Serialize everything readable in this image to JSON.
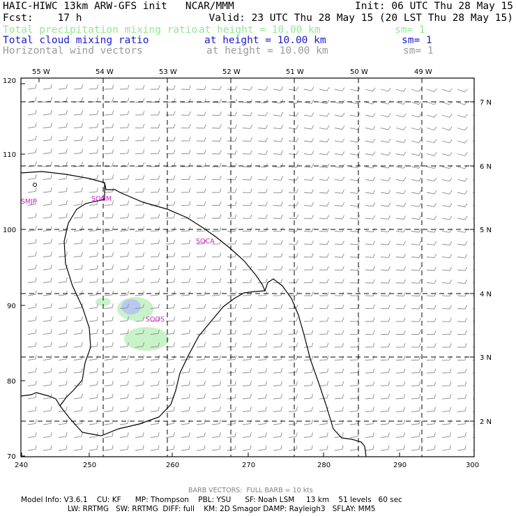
{
  "header": {
    "title": "HAIC-HIWC 13km ARW-GFS init   NCAR/MMM",
    "init": "Init: 06 UTC Thu 28 May 15",
    "fcst": "Fcst:    17 h",
    "valid": "Valid: 23 UTC Thu 28 May 15 (20 LST Thu 28 May 15)",
    "fields": [
      {
        "name": "Total precipitation mixing ratio",
        "level": "at height = 10.00 km",
        "sm": "sm= 1",
        "color": "#90e890"
      },
      {
        "name": "Total cloud mixing ratio",
        "level": "at height = 10.00 km",
        "sm": "sm= 1",
        "color": "#1a1ad0"
      },
      {
        "name": "Horizontal wind vectors",
        "level": "at height = 10.00 km",
        "sm": "sm= 1",
        "color": "#9a9a9a"
      }
    ]
  },
  "map": {
    "lon_labels": [
      "55 W",
      "54 W",
      "53 W",
      "52 W",
      "51 W",
      "50 W",
      "49 W"
    ],
    "lat_labels": [
      "7 N",
      "6 N",
      "5 N",
      "4 N",
      "3 N",
      "2 N"
    ],
    "x_ticks": [
      "240",
      "250",
      "260",
      "270",
      "280",
      "290",
      "300"
    ],
    "y_ticks": [
      "120",
      "110",
      "100",
      "90",
      "80",
      "70"
    ],
    "stations": [
      "SMJP",
      "SOGM",
      "SOCA",
      "SOOS"
    ],
    "colors": {
      "coast": "#000000",
      "grid": "#000000",
      "barb": "#8c8c8c",
      "station": "#cc22cc",
      "precip": "#c8f2c8",
      "cloud": "#b8c8f0"
    }
  },
  "footer": {
    "barb_note": "BARB VECTORS:  FULL BARB = 10 kts",
    "model_line1": "Model Info: V3.6.1    CU: KF      MP: Thompson    PBL: YSU      SF: Noah LSM     13 km    51 levels   60 sec",
    "model_line2": "LW: RRTMG   SW: RRTMG  DIFF: full    KM: 2D Smagor DAMP: Rayleigh3   SFLAY: MM5"
  }
}
